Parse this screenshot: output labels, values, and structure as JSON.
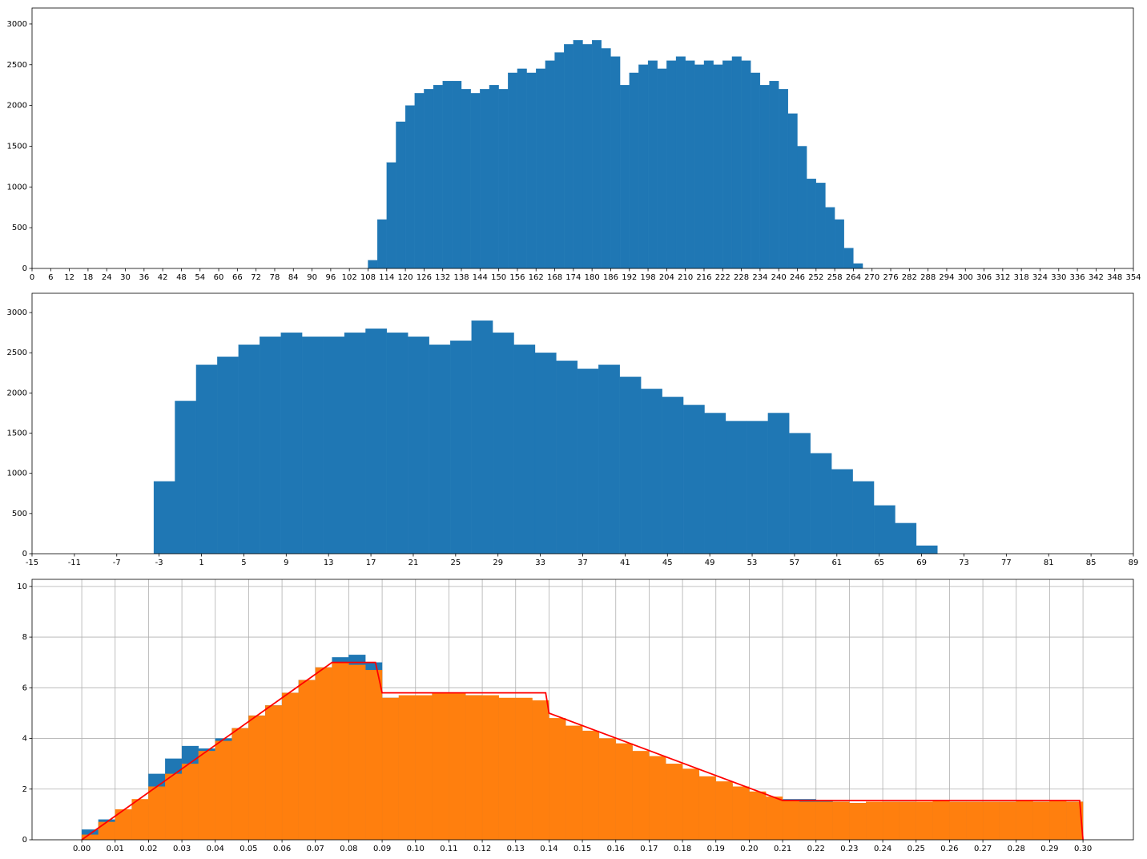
{
  "chart_data": [
    {
      "type": "histogram",
      "color": "#1f77b4",
      "bins": [
        108,
        111,
        114,
        117,
        120,
        123,
        126,
        129,
        132,
        135,
        138,
        141,
        144,
        147,
        150,
        153,
        156,
        159,
        162,
        165,
        168,
        171,
        174,
        177,
        180,
        183,
        186,
        189,
        192,
        195,
        198,
        201,
        204,
        207,
        210,
        213,
        216,
        219,
        222,
        225,
        228,
        231,
        234,
        237,
        240,
        243,
        246,
        249,
        252,
        255,
        258,
        261,
        264,
        267
      ],
      "values": [
        100,
        600,
        1300,
        1800,
        2000,
        2150,
        2200,
        2250,
        2300,
        2300,
        2200,
        2150,
        2200,
        2250,
        2200,
        2400,
        2450,
        2400,
        2450,
        2550,
        2650,
        2750,
        2800,
        2750,
        2800,
        2700,
        2600,
        2250,
        2400,
        2500,
        2550,
        2450,
        2550,
        2600,
        2550,
        2500,
        2550,
        2500,
        2550,
        2600,
        2550,
        2400,
        2250,
        2300,
        2200,
        1900,
        1500,
        1100,
        1050,
        750,
        600,
        250,
        60
      ],
      "xlim": [
        0,
        354
      ],
      "xticks": [
        0,
        6,
        12,
        18,
        24,
        30,
        36,
        42,
        48,
        54,
        60,
        66,
        72,
        78,
        84,
        90,
        96,
        102,
        108,
        114,
        120,
        126,
        132,
        138,
        144,
        150,
        156,
        162,
        168,
        174,
        180,
        186,
        192,
        198,
        204,
        210,
        216,
        222,
        228,
        234,
        240,
        246,
        252,
        258,
        264,
        270,
        276,
        282,
        288,
        294,
        300,
        306,
        312,
        318,
        324,
        330,
        336,
        342,
        348,
        354
      ],
      "ylim": [
        0,
        3196
      ],
      "yticks": [
        0,
        500,
        1000,
        1500,
        2000,
        2500,
        3000
      ],
      "grid": false
    },
    {
      "type": "histogram",
      "color": "#1f77b4",
      "bins": [
        -3.5,
        -1.5,
        0.5,
        2.5,
        4.5,
        6.5,
        8.5,
        10.5,
        12.5,
        14.5,
        16.5,
        18.5,
        20.5,
        22.5,
        24.5,
        26.5,
        28.5,
        30.5,
        32.5,
        34.5,
        36.5,
        38.5,
        40.5,
        42.5,
        44.5,
        46.5,
        48.5,
        50.5,
        52.5,
        54.5,
        56.5,
        58.5,
        60.5,
        62.5,
        64.5,
        66.5,
        68.5,
        70.5
      ],
      "values": [
        900,
        1900,
        2350,
        2450,
        2600,
        2700,
        2750,
        2700,
        2700,
        2750,
        2800,
        2750,
        2700,
        2600,
        2650,
        2900,
        2750,
        2600,
        2500,
        2400,
        2300,
        2350,
        2200,
        2050,
        1950,
        1850,
        1750,
        1650,
        1650,
        1750,
        1500,
        1250,
        1050,
        900,
        600,
        380,
        100
      ],
      "xlim": [
        -15,
        89
      ],
      "xticks": [
        -15,
        -11,
        -7,
        -3,
        1,
        5,
        9,
        13,
        17,
        21,
        25,
        29,
        33,
        37,
        41,
        45,
        49,
        53,
        57,
        61,
        65,
        69,
        73,
        77,
        81,
        85,
        89
      ],
      "ylim": [
        0,
        3240
      ],
      "yticks": [
        0,
        500,
        1000,
        1500,
        2000,
        2500,
        3000
      ],
      "grid": false
    },
    {
      "type": "histogram",
      "bins": [
        0,
        0.005,
        0.01,
        0.015,
        0.02,
        0.025,
        0.03,
        0.035,
        0.04,
        0.045,
        0.05,
        0.055,
        0.06,
        0.065,
        0.07,
        0.075,
        0.08,
        0.085,
        0.09,
        0.095,
        0.1,
        0.105,
        0.11,
        0.115,
        0.12,
        0.125,
        0.13,
        0.135,
        0.14,
        0.145,
        0.15,
        0.155,
        0.16,
        0.165,
        0.17,
        0.175,
        0.18,
        0.185,
        0.19,
        0.195,
        0.2,
        0.205,
        0.21,
        0.215,
        0.22,
        0.225,
        0.23,
        0.235,
        0.24,
        0.245,
        0.25,
        0.255,
        0.26,
        0.265,
        0.27,
        0.275,
        0.28,
        0.285,
        0.29,
        0.295,
        0.3
      ],
      "series": [
        {
          "color": "#1f77b4",
          "values": [
            0.4,
            0.8,
            1.0,
            1.4,
            2.6,
            3.2,
            3.7,
            3.6,
            4.0,
            4.4,
            4.9,
            5.3,
            5.8,
            6.3,
            6.8,
            7.2,
            7.3,
            7.0,
            5.6,
            5.5,
            5.6,
            5.8,
            5.8,
            5.7,
            5.6,
            5.5,
            5.5,
            5.4,
            4.7,
            4.4,
            4.2,
            3.9,
            3.7,
            3.4,
            3.2,
            2.9,
            2.6,
            2.4,
            2.2,
            2.0,
            1.8,
            1.6,
            1.6,
            1.6,
            1.55,
            1.5,
            1.45,
            1.45,
            1.5,
            1.5,
            1.45,
            1.45,
            1.5,
            1.5,
            1.5,
            1.5,
            1.5,
            1.5,
            1.5,
            1.5
          ]
        },
        {
          "color": "#ff7f0e",
          "values": [
            0.2,
            0.7,
            1.2,
            1.6,
            2.1,
            2.6,
            3.0,
            3.5,
            3.9,
            4.4,
            4.9,
            5.3,
            5.8,
            6.3,
            6.8,
            7.0,
            6.9,
            6.7,
            5.6,
            5.7,
            5.7,
            5.8,
            5.8,
            5.7,
            5.7,
            5.6,
            5.6,
            5.5,
            4.8,
            4.5,
            4.3,
            4.0,
            3.8,
            3.5,
            3.3,
            3.0,
            2.8,
            2.5,
            2.3,
            2.1,
            1.9,
            1.7,
            1.55,
            1.5,
            1.5,
            1.5,
            1.45,
            1.5,
            1.5,
            1.5,
            1.5,
            1.55,
            1.5,
            1.5,
            1.5,
            1.5,
            1.55,
            1.5,
            1.55,
            1.5
          ]
        }
      ],
      "overlay": {
        "type": "line",
        "color": "#ff0000",
        "x": [
          0,
          0.075,
          0.088,
          0.09,
          0.139,
          0.14,
          0.21,
          0.299,
          0.3
        ],
        "values": [
          0,
          7,
          7,
          5.8,
          5.8,
          5.0,
          1.55,
          1.55,
          0
        ]
      },
      "xlim": [
        -0.0149,
        0.3151
      ],
      "xticks": [
        {
          "value": 0,
          "label": "0.00"
        },
        {
          "value": 0.01,
          "label": "0.01"
        },
        {
          "value": 0.02,
          "label": "0.02"
        },
        {
          "value": 0.03,
          "label": "0.03"
        },
        {
          "value": 0.04,
          "label": "0.04"
        },
        {
          "value": 0.05,
          "label": "0.05"
        },
        {
          "value": 0.06,
          "label": "0.06"
        },
        {
          "value": 0.07,
          "label": "0.07"
        },
        {
          "value": 0.08,
          "label": "0.08"
        },
        {
          "value": 0.09,
          "label": "0.09"
        },
        {
          "value": 0.1,
          "label": "0.10"
        },
        {
          "value": 0.11,
          "label": "0.11"
        },
        {
          "value": 0.12,
          "label": "0.12"
        },
        {
          "value": 0.13,
          "label": "0.13"
        },
        {
          "value": 0.14,
          "label": "0.14"
        },
        {
          "value": 0.15,
          "label": "0.15"
        },
        {
          "value": 0.16,
          "label": "0.16"
        },
        {
          "value": 0.17,
          "label": "0.17"
        },
        {
          "value": 0.18,
          "label": "0.18"
        },
        {
          "value": 0.19,
          "label": "0.19"
        },
        {
          "value": 0.2,
          "label": "0.20"
        },
        {
          "value": 0.21,
          "label": "0.21"
        },
        {
          "value": 0.22,
          "label": "0.22"
        },
        {
          "value": 0.23,
          "label": "0.23"
        },
        {
          "value": 0.24,
          "label": "0.24"
        },
        {
          "value": 0.25,
          "label": "0.25"
        },
        {
          "value": 0.26,
          "label": "0.26"
        },
        {
          "value": 0.27,
          "label": "0.27"
        },
        {
          "value": 0.28,
          "label": "0.28"
        },
        {
          "value": 0.29,
          "label": "0.29"
        },
        {
          "value": 0.3,
          "label": "0.30"
        }
      ],
      "ylim": [
        0,
        10.28
      ],
      "yticks": [
        0,
        2,
        4,
        6,
        8,
        10
      ],
      "grid": true
    }
  ]
}
